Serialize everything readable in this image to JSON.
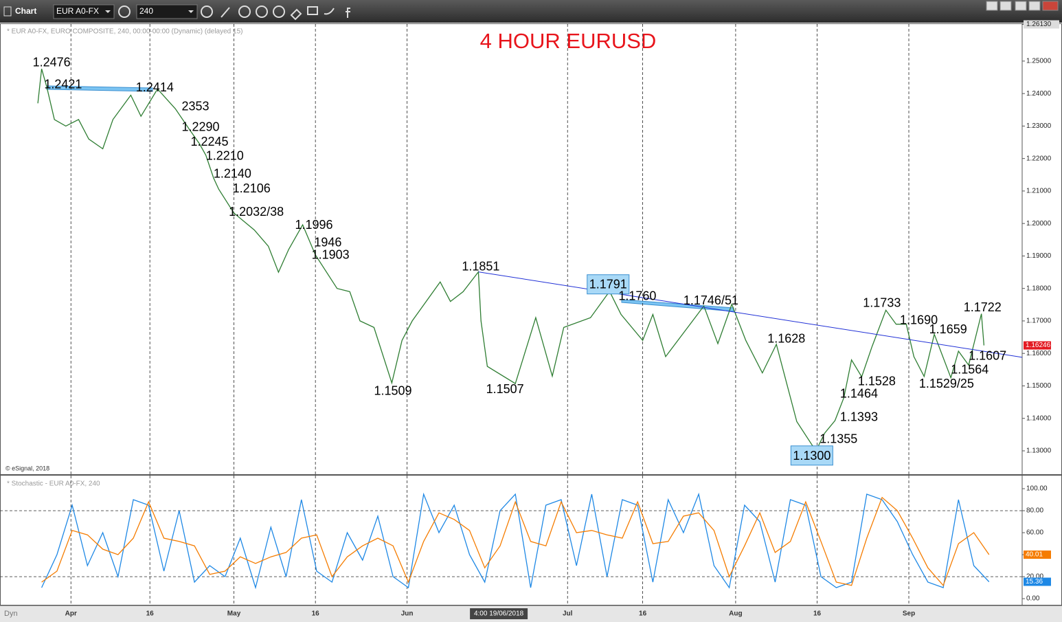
{
  "toolbar": {
    "title": "Chart",
    "symbol": "EUR A0-FX",
    "interval": "240",
    "mode": "Dyn"
  },
  "chart_data": [
    {
      "type": "line",
      "title": "4 HOUR EURUSD",
      "subtitle": "* EUR A0-FX, EURO COMPOSITE, 240, 00:00-00:00 (Dynamic) (delayed 15)",
      "source": "© eSignal, 2018",
      "color": "#2e7d32",
      "x": [
        27,
        30,
        34,
        40,
        49,
        59,
        67,
        78,
        86,
        100,
        108,
        121,
        135,
        146,
        154,
        159,
        165,
        169,
        181,
        197,
        208,
        216,
        224,
        235,
        245,
        262,
        272,
        280,
        291,
        305,
        313,
        321,
        343,
        351,
        361,
        373,
        375,
        380,
        402,
        418,
        431,
        440,
        461,
        476,
        485,
        502,
        510,
        520,
        550,
        561,
        572,
        583,
        596,
        607,
        623,
        638,
        645,
        653,
        660,
        666,
        674,
        682,
        693,
        701,
        709,
        715,
        723,
        731,
        744,
        750,
        758,
        768,
        770
      ],
      "series": [
        {
          "color": "#2e7d32",
          "values": [
            1.237,
            1.2476,
            1.2421,
            1.232,
            1.23,
            1.232,
            1.226,
            1.223,
            1.232,
            1.2395,
            1.233,
            1.2414,
            1.2353,
            1.229,
            1.2245,
            1.221,
            1.214,
            1.2106,
            1.2032,
            1.198,
            1.193,
            1.185,
            1.192,
            1.1996,
            1.1903,
            1.18,
            1.179,
            1.17,
            1.168,
            1.1509,
            1.164,
            1.17,
            1.182,
            1.176,
            1.179,
            1.1851,
            1.17,
            1.156,
            1.1507,
            1.171,
            1.153,
            1.168,
            1.171,
            1.1791,
            1.172,
            1.164,
            1.172,
            1.159,
            1.1746,
            1.163,
            1.1751,
            1.164,
            1.154,
            1.1628,
            1.139,
            1.13,
            1.1355,
            1.1393,
            1.1464,
            1.158,
            1.1528,
            1.162,
            1.1733,
            1.169,
            1.169,
            1.159,
            1.1529,
            1.1659,
            1.1525,
            1.1607,
            1.1564,
            1.1722,
            1.16246
          ]
        }
      ],
      "xlim": [
        0,
        800
      ],
      "ylim": [
        1.1228,
        1.2614
      ],
      "yticks": [
        {
          "value": 1.13,
          "label": "1.13000"
        },
        {
          "value": 1.14,
          "label": "1.14000"
        },
        {
          "value": 1.15,
          "label": "1.15000"
        },
        {
          "value": 1.16,
          "label": "1.16000"
        },
        {
          "value": 1.17,
          "label": "1.17000"
        },
        {
          "value": 1.18,
          "label": "1.18000"
        },
        {
          "value": 1.19,
          "label": "1.19000"
        },
        {
          "value": 1.2,
          "label": "1.20000"
        },
        {
          "value": 1.21,
          "label": "1.21000"
        },
        {
          "value": 1.22,
          "label": "1.22000"
        },
        {
          "value": 1.23,
          "label": "1.23000"
        },
        {
          "value": 1.24,
          "label": "1.24000"
        },
        {
          "value": 1.25,
          "label": "1.25000"
        },
        {
          "value": 1.2613,
          "label": "1.26130"
        }
      ],
      "trendline": {
        "color": "#1f2fd6",
        "x": [
          373,
          800
        ],
        "y": [
          1.1851,
          1.1588
        ]
      },
      "annotations": [
        {
          "text": "1.2476",
          "x": 23,
          "y": 1.2494
        },
        {
          "text": "1.2421",
          "x": 32,
          "y": 1.2426
        },
        {
          "text": "1.2414",
          "x": 104,
          "y": 1.2417
        },
        {
          "text": "2353",
          "x": 140,
          "y": 1.2358
        },
        {
          "text": "1.2290",
          "x": 140,
          "y": 1.2295
        },
        {
          "text": "1.2245",
          "x": 147,
          "y": 1.225
        },
        {
          "text": "1.2210",
          "x": 159,
          "y": 1.2206
        },
        {
          "text": "1.2140",
          "x": 165,
          "y": 1.2151
        },
        {
          "text": "1.2106",
          "x": 180,
          "y": 1.2106
        },
        {
          "text": "1.2032/38",
          "x": 177,
          "y": 1.2034
        },
        {
          "text": "1.1996",
          "x": 229,
          "y": 1.1994
        },
        {
          "text": "1946",
          "x": 244,
          "y": 1.1939
        },
        {
          "text": "1.1903",
          "x": 242,
          "y": 1.1901
        },
        {
          "text": "1.1851",
          "x": 360,
          "y": 1.1865
        },
        {
          "text": "1.1791",
          "x": 460,
          "y": 1.181,
          "boxed": true
        },
        {
          "text": "1.1760",
          "x": 483,
          "y": 1.1774
        },
        {
          "text": "1.1746/51",
          "x": 534,
          "y": 1.1761
        },
        {
          "text": "1.1628",
          "x": 600,
          "y": 1.1643
        },
        {
          "text": "1.1733",
          "x": 675,
          "y": 1.1753
        },
        {
          "text": "1.1690",
          "x": 704,
          "y": 1.17
        },
        {
          "text": "1.1659",
          "x": 727,
          "y": 1.1672
        },
        {
          "text": "1.1722",
          "x": 754,
          "y": 1.174
        },
        {
          "text": "1.1607",
          "x": 758,
          "y": 1.159
        },
        {
          "text": "1.1564",
          "x": 744,
          "y": 1.1548
        },
        {
          "text": "1.1529/25",
          "x": 719,
          "y": 1.1505
        },
        {
          "text": "1.1528",
          "x": 671,
          "y": 1.1512
        },
        {
          "text": "1.1464",
          "x": 657,
          "y": 1.1474
        },
        {
          "text": "1.1393",
          "x": 657,
          "y": 1.1402
        },
        {
          "text": "1.1355",
          "x": 641,
          "y": 1.1334
        },
        {
          "text": "1.1300",
          "x": 620,
          "y": 1.1283,
          "boxed": true
        },
        {
          "text": "1.1509",
          "x": 291,
          "y": 1.1482
        },
        {
          "text": "1.1507",
          "x": 379,
          "y": 1.1488
        }
      ]
    },
    {
      "type": "line",
      "title": "* Stochastic - EUR A0-FX, 240",
      "x": [
        30,
        42,
        54,
        66,
        78,
        90,
        102,
        114,
        126,
        138,
        150,
        162,
        174,
        186,
        198,
        210,
        222,
        234,
        246,
        258,
        270,
        282,
        294,
        306,
        318,
        330,
        342,
        354,
        366,
        378,
        390,
        402,
        414,
        426,
        438,
        450,
        462,
        474,
        486,
        498,
        510,
        522,
        534,
        546,
        558,
        570,
        582,
        594,
        606,
        618,
        630,
        642,
        654,
        666,
        678,
        690,
        702,
        714,
        726,
        738,
        750,
        762,
        774
      ],
      "series": [
        {
          "color": "#1e88e5",
          "values": [
            10,
            40,
            85,
            30,
            60,
            20,
            90,
            85,
            25,
            80,
            15,
            30,
            20,
            55,
            10,
            65,
            20,
            90,
            25,
            15,
            60,
            35,
            75,
            20,
            10,
            95,
            60,
            85,
            40,
            15,
            80,
            95,
            10,
            85,
            90,
            30,
            95,
            20,
            90,
            85,
            15,
            90,
            60,
            95,
            30,
            10,
            85,
            70,
            15,
            90,
            85,
            20,
            10,
            15,
            95,
            90,
            70,
            40,
            15,
            10,
            90,
            30,
            15.36
          ]
        },
        {
          "color": "#f57c00",
          "values": [
            15,
            25,
            62,
            58,
            45,
            40,
            55,
            88,
            55,
            52,
            48,
            22,
            25,
            38,
            32,
            38,
            42,
            55,
            58,
            20,
            38,
            48,
            55,
            48,
            15,
            52,
            78,
            72,
            62,
            28,
            48,
            88,
            52,
            48,
            88,
            60,
            62,
            58,
            55,
            88,
            50,
            52,
            75,
            78,
            62,
            20,
            48,
            78,
            42,
            52,
            88,
            52,
            15,
            12,
            55,
            92,
            80,
            55,
            28,
            12,
            50,
            60,
            40.01
          ]
        }
      ],
      "levels": [
        20,
        80
      ],
      "xlim": [
        0,
        800
      ],
      "ylim": [
        -5.6,
        111.9
      ],
      "yticks": [
        {
          "value": 0,
          "label": "0.00"
        },
        {
          "value": 20,
          "label": "20.00"
        },
        {
          "value": 40,
          "label": "40.00"
        },
        {
          "value": 60,
          "label": "60.00"
        },
        {
          "value": 80,
          "label": "80.00"
        },
        {
          "value": 100,
          "label": "100.00"
        }
      ],
      "xticks": [
        {
          "value": 53,
          "label": "Apr"
        },
        {
          "value": 115,
          "label": "16"
        },
        {
          "value": 181,
          "label": "May"
        },
        {
          "value": 245,
          "label": "16"
        },
        {
          "value": 317,
          "label": "Jun"
        },
        {
          "value": 443,
          "label": "Jul"
        },
        {
          "value": 502,
          "label": "16"
        },
        {
          "value": 575,
          "label": "Aug"
        },
        {
          "value": 639,
          "label": "16"
        },
        {
          "value": 711,
          "label": "Sep"
        }
      ],
      "crosshair": {
        "x": 389,
        "label": "4:00 19/06/2018"
      }
    }
  ]
}
